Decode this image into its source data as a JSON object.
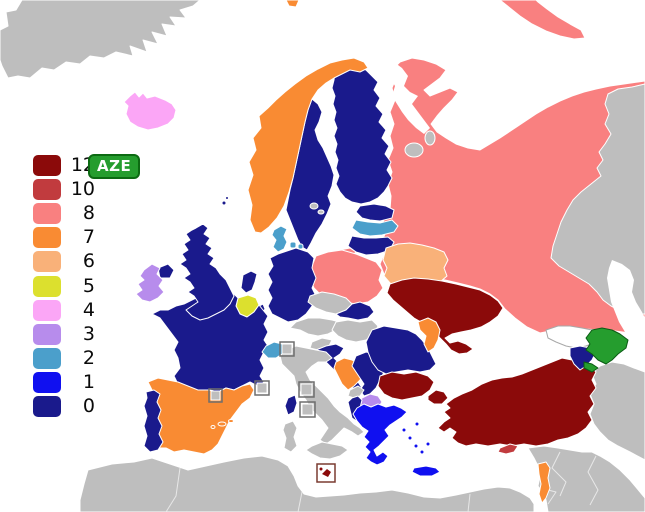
{
  "page": {
    "background": "#FFFFFF"
  },
  "badge": {
    "label": "AZE",
    "bg": "#259D2E",
    "border": "#0C6A12",
    "text_color": "#FFFFFF"
  },
  "legend": {
    "items": [
      {
        "label": "12",
        "color": "#8B0A0A"
      },
      {
        "label": "10",
        "color": "#C13B3E"
      },
      {
        "label": "8",
        "color": "#F98080"
      },
      {
        "label": "7",
        "color": "#F98B33"
      },
      {
        "label": "6",
        "color": "#F9B179"
      },
      {
        "label": "5",
        "color": "#DCE02E"
      },
      {
        "label": "4",
        "color": "#FBA6F6"
      },
      {
        "label": "3",
        "color": "#B78CEC"
      },
      {
        "label": "2",
        "color": "#4B9FCB"
      },
      {
        "label": "1",
        "color": "#1010F0"
      },
      {
        "label": "0",
        "color": "#1A1A8C"
      }
    ]
  },
  "map": {
    "colors": {
      "sea": "#FFFFFF",
      "subject": "#259D2E",
      "not_participating": "#BEBEBE",
      "no_vote": "#FFFFFF",
      "border": "#FFFFFF"
    },
    "countries": {
      "greenland": "not-participating",
      "iceland": "4",
      "norway": "7",
      "svalbard": "7",
      "sweden": "0",
      "finland": "0",
      "denmark": "2",
      "estonia": "0",
      "latvia": "2",
      "lithuania": "0",
      "russia": "8",
      "belarus": "6",
      "ukraine": "12",
      "poland": "8",
      "germany": "0",
      "netherlands": "0",
      "belgium": "5",
      "luxembourg": "0",
      "france": "0",
      "united-kingdom": "0",
      "ireland": "3",
      "switzerland": "2",
      "spain": "7",
      "portugal": "0",
      "czech-republic": "not-participating",
      "slovakia": "0",
      "austria": "not-participating",
      "hungary": "not-participating",
      "slovenia": "not-participating",
      "croatia": "0",
      "bosnia-herzegovina": "7",
      "montenegro": "not-participating",
      "serbia": "0",
      "north-macedonia": "3",
      "albania": "0",
      "greece": "1",
      "bulgaria": "12",
      "romania": "0",
      "moldova": "7",
      "turkey": "12",
      "cyprus": "10",
      "georgia": "no-vote",
      "armenia": "0",
      "azerbaijan": "subject",
      "israel": "7",
      "italy": "not-participating",
      "malta": "12",
      "monaco": "not-participating",
      "andorra": "not-participating",
      "san-marino": "not-participating",
      "liechtenstein": "not-participating",
      "vatican-city": "not-participating",
      "north-africa": "not-participating",
      "middle-east": "not-participating",
      "central-asia": "not-participating",
      "iran": "not-participating",
      "lakes": "not-participating"
    }
  }
}
